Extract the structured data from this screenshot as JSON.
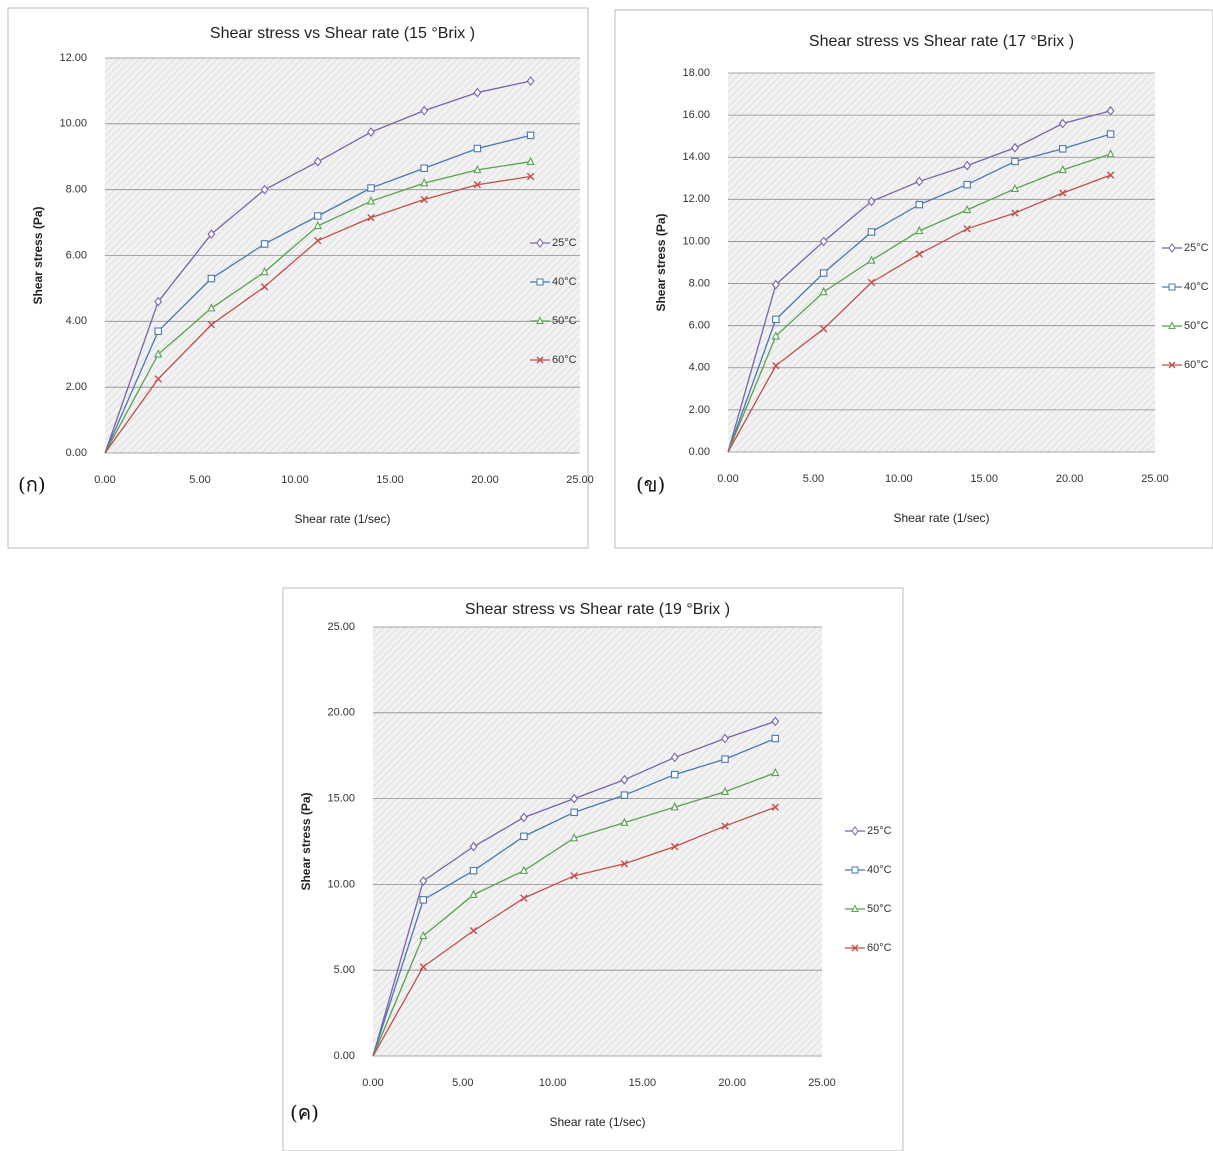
{
  "chart_data": [
    {
      "type": "line",
      "panel_label": "(ก)",
      "title": "Shear stress vs Shear rate (15 °Brix )",
      "x_label": "Shear rate (1/sec)",
      "y_label": "Shear stress (Pa)",
      "x": [
        0,
        2.8,
        5.6,
        8.4,
        11.2,
        14,
        16.8,
        19.6,
        22.4
      ],
      "series": [
        {
          "name": "25°C",
          "color": "#7b62a8",
          "values": [
            0,
            4.6,
            6.65,
            8.0,
            8.85,
            9.75,
            10.4,
            10.95,
            11.3
          ]
        },
        {
          "name": "40°C",
          "color": "#4a78b0",
          "values": [
            0,
            3.7,
            5.3,
            6.35,
            7.2,
            8.05,
            8.65,
            9.25,
            9.65
          ]
        },
        {
          "name": "50°C",
          "color": "#5aa051",
          "values": [
            0,
            3.0,
            4.4,
            5.5,
            6.9,
            7.65,
            8.2,
            8.6,
            8.85
          ]
        },
        {
          "name": "60°C",
          "color": "#c0504d",
          "values": [
            0,
            2.25,
            3.9,
            5.05,
            6.45,
            7.15,
            7.7,
            8.15,
            8.4
          ]
        }
      ],
      "xlim": [
        0,
        25
      ],
      "xticks": [
        {
          "value": 0,
          "label": "0.00"
        },
        {
          "value": 5,
          "label": "5.00"
        },
        {
          "value": 10,
          "label": "10.00"
        },
        {
          "value": 15,
          "label": "15.00"
        },
        {
          "value": 20,
          "label": "20.00"
        },
        {
          "value": 25,
          "label": "25.00"
        }
      ],
      "ylim": [
        0,
        12
      ],
      "yticks": [
        {
          "value": 0,
          "label": "0.00"
        },
        {
          "value": 2,
          "label": "2.00"
        },
        {
          "value": 4,
          "label": "4.00"
        },
        {
          "value": 6,
          "label": "6.00"
        },
        {
          "value": 8,
          "label": "8.00"
        },
        {
          "value": 10,
          "label": "10.00"
        },
        {
          "value": 12,
          "label": "12.00"
        }
      ],
      "grid": true,
      "legend": "right"
    },
    {
      "type": "line",
      "panel_label": "(ข)",
      "title": "Shear stress vs Shear rate (17 °Brix )",
      "x_label": "Shear rate (1/sec)",
      "y_label": "Shear stress (Pa)",
      "x": [
        0,
        2.8,
        5.6,
        8.4,
        11.2,
        14,
        16.8,
        19.6,
        22.4
      ],
      "series": [
        {
          "name": "25°C",
          "color": "#7b62a8",
          "values": [
            0,
            7.95,
            10.0,
            11.9,
            12.85,
            13.6,
            14.45,
            15.6,
            16.2
          ]
        },
        {
          "name": "40°C",
          "color": "#4a78b0",
          "values": [
            0,
            6.3,
            8.5,
            10.45,
            11.75,
            12.7,
            13.8,
            14.4,
            15.1
          ]
        },
        {
          "name": "50°C",
          "color": "#5aa051",
          "values": [
            0,
            5.5,
            7.6,
            9.1,
            10.5,
            11.5,
            12.5,
            13.4,
            14.15
          ]
        },
        {
          "name": "60°C",
          "color": "#c0504d",
          "values": [
            0,
            4.1,
            5.85,
            8.05,
            9.4,
            10.6,
            11.35,
            12.3,
            13.15
          ]
        }
      ],
      "xlim": [
        0,
        25
      ],
      "xticks": [
        {
          "value": 0,
          "label": "0.00"
        },
        {
          "value": 5,
          "label": "5.00"
        },
        {
          "value": 10,
          "label": "10.00"
        },
        {
          "value": 15,
          "label": "15.00"
        },
        {
          "value": 20,
          "label": "20.00"
        },
        {
          "value": 25,
          "label": "25.00"
        }
      ],
      "ylim": [
        0,
        18
      ],
      "yticks": [
        {
          "value": 0,
          "label": "0.00"
        },
        {
          "value": 2,
          "label": "2.00"
        },
        {
          "value": 4,
          "label": "4.00"
        },
        {
          "value": 6,
          "label": "6.00"
        },
        {
          "value": 8,
          "label": "8.00"
        },
        {
          "value": 10,
          "label": "10.00"
        },
        {
          "value": 12,
          "label": "12.00"
        },
        {
          "value": 14,
          "label": "14.00"
        },
        {
          "value": 16,
          "label": "16.00"
        },
        {
          "value": 18,
          "label": "18.00"
        }
      ],
      "grid": true,
      "legend": "right"
    },
    {
      "type": "line",
      "panel_label": "(ค)",
      "title": "Shear stress vs Shear rate (19 °Brix )",
      "x_label": "Shear rate (1/sec)",
      "y_label": "Shear stress (Pa)",
      "x": [
        0,
        2.8,
        5.6,
        8.4,
        11.2,
        14,
        16.8,
        19.6,
        22.4
      ],
      "series": [
        {
          "name": "25°C",
          "color": "#7b62a8",
          "values": [
            0,
            10.2,
            12.2,
            13.9,
            15.0,
            16.1,
            17.4,
            18.5,
            19.5
          ]
        },
        {
          "name": "40°C",
          "color": "#4a78b0",
          "values": [
            0,
            9.1,
            10.8,
            12.8,
            14.2,
            15.2,
            16.4,
            17.3,
            18.5
          ]
        },
        {
          "name": "50°C",
          "color": "#5aa051",
          "values": [
            0,
            7.0,
            9.4,
            10.8,
            12.7,
            13.6,
            14.5,
            15.4,
            16.5
          ]
        },
        {
          "name": "60°C",
          "color": "#c0504d",
          "values": [
            0,
            5.2,
            7.3,
            9.2,
            10.5,
            11.2,
            12.2,
            13.4,
            14.5
          ]
        }
      ],
      "xlim": [
        0,
        25
      ],
      "xticks": [
        {
          "value": 0,
          "label": "0.00"
        },
        {
          "value": 5,
          "label": "5.00"
        },
        {
          "value": 10,
          "label": "10.00"
        },
        {
          "value": 15,
          "label": "15.00"
        },
        {
          "value": 20,
          "label": "20.00"
        },
        {
          "value": 25,
          "label": "25.00"
        }
      ],
      "ylim": [
        0,
        25
      ],
      "yticks": [
        {
          "value": 0,
          "label": "0.00"
        },
        {
          "value": 5,
          "label": "5.00"
        },
        {
          "value": 10,
          "label": "10.00"
        },
        {
          "value": 15,
          "label": "15.00"
        },
        {
          "value": 20,
          "label": "20.00"
        },
        {
          "value": 25,
          "label": "25.00"
        }
      ],
      "grid": true,
      "legend": "right"
    }
  ]
}
